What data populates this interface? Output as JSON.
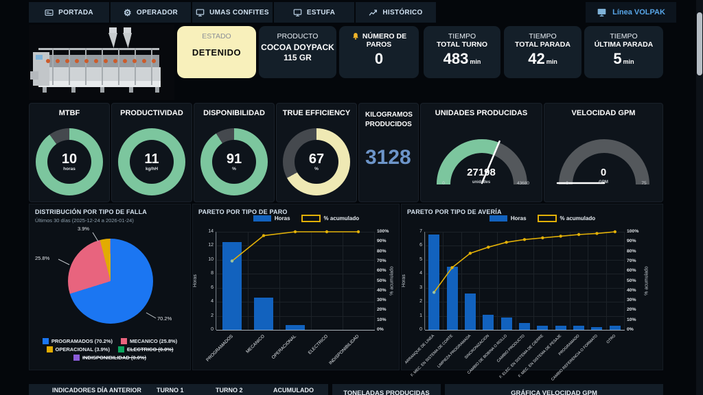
{
  "nav": {
    "tabs": [
      {
        "label": "PORTADA",
        "icon": "card-icon"
      },
      {
        "label": "OPERADOR",
        "icon": "gear-icon"
      },
      {
        "label": "UMAS CONFITES",
        "icon": "monitor-icon"
      },
      {
        "label": "ESTUFA",
        "icon": "monitor-icon"
      },
      {
        "label": "HISTÓRICO",
        "icon": "trend-icon"
      }
    ],
    "device_label": "Línea VOLPAK"
  },
  "status_cards": {
    "estado": {
      "title": "ESTADO",
      "value": "DETENIDO",
      "bg": "#f8f0bb"
    },
    "producto": {
      "title": "PRODUCTO",
      "value": "COCOA DOYPACK 115 GR"
    },
    "paros": {
      "title_line1": "NÚMERO DE",
      "title_line2": "PAROS",
      "value": "0",
      "icon": "bell-icon"
    },
    "total_turno": {
      "title_line1": "TIEMPO",
      "title_line2": "TOTAL TURNO",
      "value": "483",
      "unit": "min"
    },
    "total_parada": {
      "title_line1": "TIEMPO",
      "title_line2": "TOTAL PARADA",
      "value": "42",
      "unit": "min"
    },
    "ultima_parada": {
      "title_line1": "TIEMPO",
      "title_line2": "ÚLTIMA PARADA",
      "value": "5",
      "unit": "min"
    }
  },
  "kpis": [
    {
      "title": "MTBF",
      "value": "10",
      "unit": "horas",
      "percent": 90,
      "color": "#7cc69e"
    },
    {
      "title": "PRODUCTIVIDAD",
      "value": "11",
      "unit": "kg/hH",
      "percent": 100,
      "color": "#7cc69e"
    },
    {
      "title": "DISPONIBILIDAD",
      "value": "91",
      "unit": "%",
      "percent": 91,
      "color": "#7cc69e"
    },
    {
      "title": "TRUE EFFICIENCY",
      "value": "67",
      "unit": "%",
      "percent": 67,
      "color": "#efe9b4"
    }
  ],
  "kilogramos": {
    "title_line1": "KILOGRAMOS",
    "title_line2": "PRODUCIDOS",
    "value": "3128",
    "value_color": "#6d95c9"
  },
  "gauges": [
    {
      "title": "UNIDADES PRODUCIDAS",
      "value": "27198",
      "unit": "unidades",
      "min": "0",
      "max": "43680",
      "percent": 62.3,
      "color": "#7cc69e"
    },
    {
      "title": "VELOCIDAD GPM",
      "value": "0",
      "unit": "GPM",
      "min": "0",
      "max": "75",
      "percent": 0,
      "color": "#7cc69e"
    }
  ],
  "chart_data": [
    {
      "type": "pie",
      "title": "DISTRIBUCIÓN POR TIPO DE FALLA",
      "subtitle": "Últimos 30 días (2025-12-24 a 2026-01-24)",
      "slices": [
        {
          "label": "PROGRAMADOS",
          "pct": 70.2,
          "display": "PROGRAMADOS (70.2%)",
          "color": "#1b76f2",
          "struck": false
        },
        {
          "label": "MECANICO",
          "pct": 25.8,
          "display": "MECANICO (25.8%)",
          "color": "#e8647e",
          "struck": false
        },
        {
          "label": "OPERACIONAL",
          "pct": 3.9,
          "display": "OPERACIONAL (3.9%)",
          "color": "#e2ab02",
          "struck": false
        },
        {
          "label": "ELECTRICO",
          "pct": 0.0,
          "display": "ELECTRICO (0.0%)",
          "color": "#0aa55e",
          "struck": true
        },
        {
          "label": "INDISPONIBILIDAD",
          "pct": 0.0,
          "display": "INDISPONIBILIDAD (0.0%)",
          "color": "#8a5cd8",
          "struck": true
        }
      ],
      "callouts": [
        "3.9%",
        "25.8%",
        "70.2%"
      ]
    },
    {
      "type": "bar",
      "subtype": "pareto",
      "title": "PARETO POR TIPO DE PARO",
      "legend": [
        "Horas",
        "% acumulado"
      ],
      "categories": [
        "PROGRAMADOS",
        "MECANICO",
        "OPERACIONAL",
        "ELECTRICO",
        "INDISPONIBILIDAD"
      ],
      "bars_horas": [
        12.5,
        4.6,
        0.7,
        0,
        0
      ],
      "cum_pct": [
        70.2,
        96.1,
        100,
        100,
        100
      ],
      "ylabel": "Horas",
      "y2label": "% acumulado",
      "ylim": [
        0,
        14
      ],
      "yticks": [
        "0",
        "2",
        "4",
        "6",
        "8",
        "10",
        "12",
        "14"
      ],
      "y2ticks": [
        "0%",
        "10%",
        "20%",
        "30%",
        "40%",
        "50%",
        "60%",
        "70%",
        "80%",
        "90%",
        "100%"
      ],
      "bar_color": "#1262be",
      "line_color": "#e2b007"
    },
    {
      "type": "bar",
      "subtype": "pareto",
      "title": "PARETO POR TIPO DE AVERÍA",
      "legend": [
        "Horas",
        "% acumulado"
      ],
      "categories": [
        "ARRANQUE DE LINEA",
        "F. MEC. EN SISTEMA DE CORTE",
        "LIMPIEZA PROGRAMADA",
        "SINCRONIZACION",
        "CAMBIO DE BOBINA O ROLLO",
        "CAMBIO PRODUCTO",
        "F. ELEC. EN SISTEMA DE CIERRE",
        "F. MEC. EN SISTEMA DE PESAJE",
        "PROGRAMADO",
        "CAMBIO REFERENCIA O FORMATO",
        "OTRO"
      ],
      "bars_horas": [
        6.8,
        4.5,
        2.6,
        1.1,
        0.9,
        0.5,
        0.3,
        0.3,
        0.3,
        0.2,
        0.3
      ],
      "cum_pct": [
        38.2,
        63.5,
        78.1,
        84.3,
        89.3,
        92.1,
        93.8,
        95.5,
        97.2,
        98.3,
        100
      ],
      "ylabel": "Horas",
      "y2label": "% acumulado",
      "ylim": [
        0,
        7
      ],
      "yticks": [
        "0",
        "1",
        "2",
        "3",
        "4",
        "5",
        "6",
        "7"
      ],
      "y2ticks": [
        "0%",
        "10%",
        "20%",
        "30%",
        "40%",
        "50%",
        "60%",
        "70%",
        "80%",
        "90%",
        "100%"
      ],
      "bar_color": "#1262be",
      "line_color": "#e2b007"
    }
  ],
  "bottom": {
    "tabs": [
      "INDICADORES DÍA ANTERIOR",
      "TURNO 1",
      "TURNO 2",
      "ACUMULADO"
    ],
    "panel_titles": [
      "TONELADAS PRODUCIDAS",
      "GRÁFICA VELOCIDAD GPM"
    ]
  }
}
